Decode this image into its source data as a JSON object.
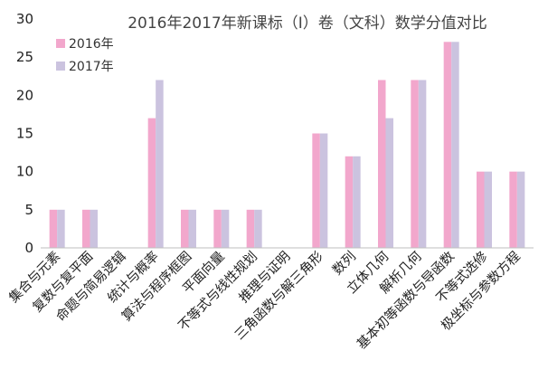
{
  "chart_data": {
    "type": "bar",
    "title": "2016年2017年新课标（Ⅰ）卷（文科）数学分值对比",
    "xlabel": "",
    "ylabel": "",
    "ylim": [
      0,
      30
    ],
    "yticks": [
      0,
      5,
      10,
      15,
      20,
      25,
      30
    ],
    "grid": false,
    "legend_position": "top-left",
    "categories": [
      "集合与元素",
      "复数与复平面",
      "命题与简易逻辑",
      "统计与概率",
      "算法与程序框图",
      "平面向量",
      "不等式与线性规划",
      "推理与证明",
      "三角函数与解三角形",
      "数列",
      "立体几何",
      "解析几何",
      "基本初等函数与导函数",
      "不等式选修",
      "极坐标与参数方程"
    ],
    "series": [
      {
        "name": "2016年",
        "color": "#F2A7CC",
        "values": [
          5,
          5,
          0,
          17,
          5,
          5,
          5,
          0,
          15,
          12,
          22,
          22,
          27,
          10,
          10
        ]
      },
      {
        "name": "2017年",
        "color": "#CBC3DF",
        "values": [
          5,
          5,
          0,
          22,
          5,
          5,
          5,
          0,
          15,
          12,
          17,
          22,
          27,
          10,
          10
        ]
      }
    ]
  }
}
